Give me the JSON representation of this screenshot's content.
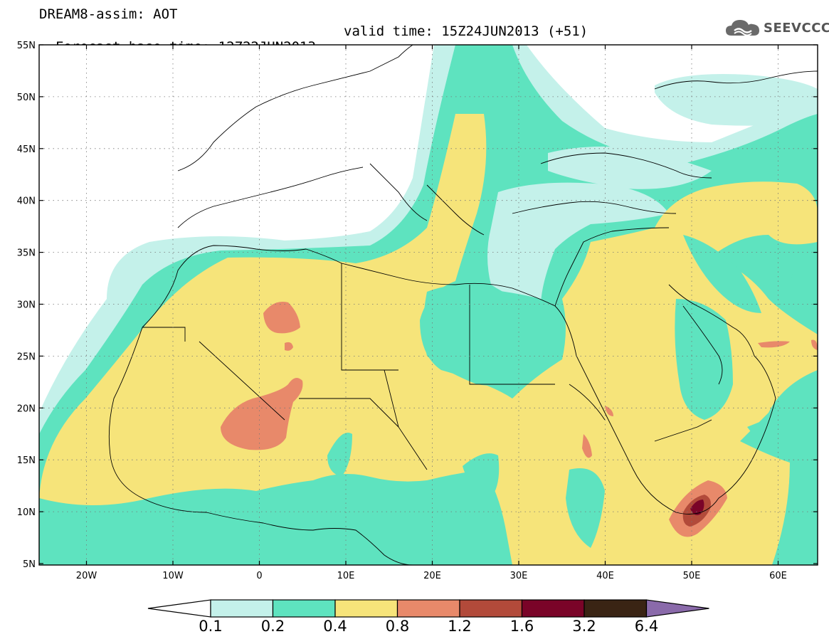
{
  "header": {
    "line1": "DREAM8-assim: AOT",
    "line2_base": "Forecast base time: 12Z22JUN2013",
    "line2_valid": "valid time: 15Z24JUN2013 (+51)"
  },
  "logo": {
    "icon": "cloud-icon",
    "text": "SEEVCCC"
  },
  "axes": {
    "lat_ticks": [
      "55N",
      "50N",
      "45N",
      "40N",
      "35N",
      "30N",
      "25N",
      "20N",
      "15N",
      "10N",
      "5N"
    ],
    "lon_ticks": [
      "20W",
      "10W",
      "0",
      "10E",
      "20E",
      "30E",
      "40E",
      "50E",
      "60E"
    ]
  },
  "colorbar": {
    "levels": [
      "0.1",
      "0.2",
      "0.4",
      "0.8",
      "1.2",
      "1.6",
      "3.2",
      "6.4"
    ],
    "colors": [
      "#ffffff",
      "#c4f1ea",
      "#5ee3bf",
      "#f6e47a",
      "#e8896a",
      "#b24a3a",
      "#7a0428",
      "#3a2414",
      "#8a6aaa"
    ]
  }
}
